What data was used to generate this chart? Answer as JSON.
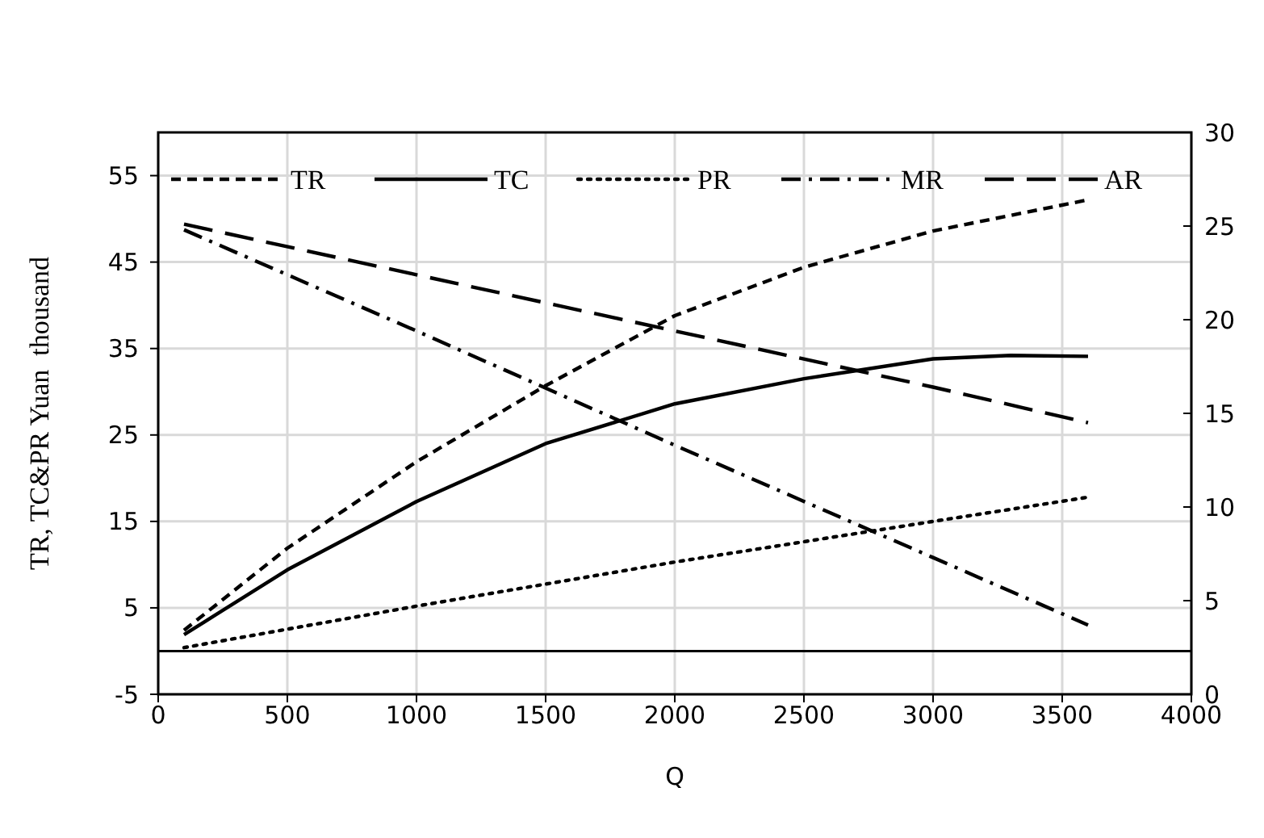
{
  "chart_data": {
    "type": "line",
    "xlabel": "Q",
    "ylabel": "TR, TC&PR Yuan  thousand",
    "xlim": [
      0,
      4000
    ],
    "xticks": [
      0,
      500,
      1000,
      1500,
      2000,
      2500,
      3000,
      3500,
      4000
    ],
    "ylim": [
      -5,
      60
    ],
    "yticks": [
      -5,
      5,
      15,
      25,
      35,
      45,
      55
    ],
    "y2lim": [
      0,
      30
    ],
    "y2ticks": [
      0,
      5,
      10,
      15,
      20,
      25,
      30
    ],
    "grid": true,
    "legend": "top",
    "marker": "none",
    "series": [
      {
        "name": "TR",
        "color": "#000000",
        "line_style": "dashed",
        "x": [
          100,
          500,
          1000,
          1500,
          2000,
          2500,
          3000,
          3600
        ],
        "values": [
          2.4,
          11.9,
          21.9,
          30.7,
          38.8,
          44.4,
          48.6,
          52.2
        ]
      },
      {
        "name": "TC",
        "color": "#000000",
        "line_style": "solid",
        "x": [
          100,
          500,
          1000,
          1500,
          2000,
          2500,
          3000,
          3300,
          3600
        ],
        "values": [
          1.9,
          9.4,
          17.3,
          24.0,
          28.6,
          31.5,
          33.8,
          34.2,
          34.1
        ]
      },
      {
        "name": "PR",
        "color": "#000000",
        "line_style": "dotted",
        "x": [
          100,
          1000,
          2000,
          3000,
          3600
        ],
        "values": [
          0.4,
          5.2,
          10.3,
          15.0,
          17.8
        ]
      },
      {
        "name": "MR",
        "color": "#000000",
        "line_style": "dashdot",
        "axis": "y2",
        "x": [
          100,
          1000,
          2000,
          3000,
          3600
        ],
        "values": [
          24.8,
          19.4,
          13.3,
          7.3,
          3.7
        ]
      },
      {
        "name": "AR",
        "color": "#000000",
        "line_style": "longdash",
        "axis": "y2",
        "x": [
          100,
          1000,
          2000,
          3000,
          3600
        ],
        "values": [
          25.1,
          22.4,
          19.4,
          16.4,
          14.5
        ]
      }
    ]
  }
}
